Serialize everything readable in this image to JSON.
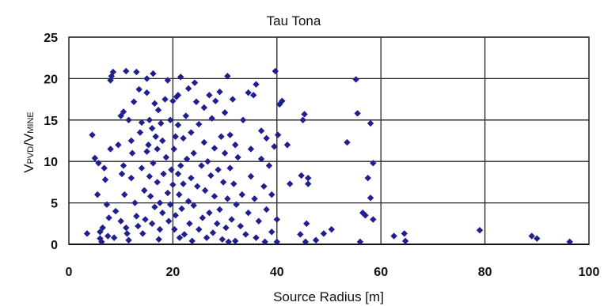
{
  "chart_data": {
    "type": "scatter",
    "title": "Tau Tona",
    "xlabel": "Source Radius [m]",
    "ylabel": {
      "parts": [
        "V",
        "PVD",
        "/V",
        "MINE"
      ]
    },
    "xlim": [
      0,
      100
    ],
    "ylim": [
      0,
      25
    ],
    "xticks": [
      "0",
      "20",
      "40",
      "60",
      "80",
      "100"
    ],
    "yticks": [
      "0",
      "5",
      "10",
      "15",
      "20",
      "25"
    ],
    "grid": true,
    "marker_color": "#1f1f8f",
    "points": [
      [
        3.5,
        1.3
      ],
      [
        4.5,
        13.2
      ],
      [
        5,
        10.4
      ],
      [
        5.5,
        6
      ],
      [
        5.7,
        9.8
      ],
      [
        6,
        1.5
      ],
      [
        6,
        0.7
      ],
      [
        6.3,
        0.3
      ],
      [
        6.5,
        2
      ],
      [
        6.8,
        9.2
      ],
      [
        7,
        7.8
      ],
      [
        7.3,
        4.8
      ],
      [
        7.5,
        1.0
      ],
      [
        7.7,
        3.2
      ],
      [
        8,
        11.5
      ],
      [
        8,
        19.8
      ],
      [
        8.2,
        20.3
      ],
      [
        8.5,
        20.8
      ],
      [
        8.7,
        0.8
      ],
      [
        9,
        4
      ],
      [
        9.5,
        12
      ],
      [
        10,
        15.5
      ],
      [
        10,
        2.8
      ],
      [
        10.2,
        8.5
      ],
      [
        10.5,
        16
      ],
      [
        10.5,
        9.5
      ],
      [
        10.7,
        6
      ],
      [
        11,
        20.9
      ],
      [
        11,
        2
      ],
      [
        11.2,
        1.3
      ],
      [
        11.5,
        15
      ],
      [
        11.5,
        0.5
      ],
      [
        12,
        12.5
      ],
      [
        12,
        8
      ],
      [
        12.2,
        11
      ],
      [
        12.5,
        17.2
      ],
      [
        12.7,
        5
      ],
      [
        13,
        20.8
      ],
      [
        13,
        3.4
      ],
      [
        13.3,
        2.2
      ],
      [
        13.5,
        18.7
      ],
      [
        13.7,
        13.5
      ],
      [
        14,
        9.2
      ],
      [
        14,
        14.7
      ],
      [
        14.2,
        1.3
      ],
      [
        14.5,
        6.5
      ],
      [
        14.7,
        3
      ],
      [
        15,
        20
      ],
      [
        15,
        11.2
      ],
      [
        15,
        18.3
      ],
      [
        15.3,
        12
      ],
      [
        15.5,
        8.2
      ],
      [
        15.5,
        15
      ],
      [
        15.7,
        5.8
      ],
      [
        16,
        14
      ],
      [
        16,
        2.5
      ],
      [
        16.2,
        20.6
      ],
      [
        16.2,
        9.8
      ],
      [
        16.5,
        17
      ],
      [
        16.5,
        4.5
      ],
      [
        16.7,
        13
      ],
      [
        17,
        11.5
      ],
      [
        17,
        7.5
      ],
      [
        17.2,
        16.2
      ],
      [
        17.3,
        0.6
      ],
      [
        17.5,
        1.8
      ],
      [
        17.5,
        5
      ],
      [
        17.7,
        14.6
      ],
      [
        18,
        12.5
      ],
      [
        18,
        3.8
      ],
      [
        18.2,
        8.5
      ],
      [
        18.5,
        17.5
      ],
      [
        18.7,
        10.5
      ],
      [
        19,
        6.2
      ],
      [
        19,
        19.8
      ],
      [
        19.2,
        2.8
      ],
      [
        19.5,
        4.8
      ],
      [
        19.5,
        15
      ],
      [
        19.7,
        9
      ],
      [
        20,
        7.2
      ],
      [
        20,
        17.3
      ],
      [
        20.2,
        11.5
      ],
      [
        20.3,
        1.8
      ],
      [
        20.5,
        3.5
      ],
      [
        20.5,
        13
      ],
      [
        20.7,
        17.8
      ],
      [
        21,
        18
      ],
      [
        21,
        8.5
      ],
      [
        21,
        14.4
      ],
      [
        21.2,
        6
      ],
      [
        21.3,
        0.8
      ],
      [
        21.5,
        9.5
      ],
      [
        21.5,
        20.2
      ],
      [
        21.7,
        4.3
      ],
      [
        22,
        12.8
      ],
      [
        22,
        7.3
      ],
      [
        22.2,
        1.2
      ],
      [
        22.5,
        15.5
      ],
      [
        22.7,
        10.3
      ],
      [
        23,
        5.2
      ],
      [
        23,
        18.8
      ],
      [
        23.2,
        2.5
      ],
      [
        23.5,
        8
      ],
      [
        23.5,
        13.5
      ],
      [
        23.7,
        0.4
      ],
      [
        24,
        11
      ],
      [
        24,
        4.7
      ],
      [
        24.2,
        19.5
      ],
      [
        24.5,
        17.2
      ],
      [
        24.7,
        7
      ],
      [
        25,
        1.8
      ],
      [
        25,
        14.5
      ],
      [
        25.5,
        9.5
      ],
      [
        25.7,
        3.2
      ],
      [
        26,
        12.3
      ],
      [
        26,
        16.5
      ],
      [
        26.2,
        6.5
      ],
      [
        26.5,
        0.8
      ],
      [
        26.7,
        10
      ],
      [
        27,
        18
      ],
      [
        27,
        3.8
      ],
      [
        27.3,
        8.3
      ],
      [
        27.5,
        15.2
      ],
      [
        27.7,
        1.4
      ],
      [
        28,
        5.8
      ],
      [
        28,
        11.6
      ],
      [
        28.2,
        17.3
      ],
      [
        28.5,
        2.5
      ],
      [
        28.7,
        9
      ],
      [
        29,
        18.4
      ],
      [
        29,
        4.2
      ],
      [
        29.3,
        13
      ],
      [
        29.5,
        0.6
      ],
      [
        29.7,
        7.5
      ],
      [
        30,
        15.9
      ],
      [
        30,
        11
      ],
      [
        30.2,
        2
      ],
      [
        30.5,
        5.5
      ],
      [
        30.5,
        20.3
      ],
      [
        30.7,
        0.3
      ],
      [
        31,
        13.2
      ],
      [
        31,
        9.2
      ],
      [
        31.3,
        3
      ],
      [
        31.5,
        17.5
      ],
      [
        31.7,
        7.3
      ],
      [
        32,
        0.4
      ],
      [
        32,
        12
      ],
      [
        32.2,
        4.8
      ],
      [
        32.5,
        10.5
      ],
      [
        33,
        2.2
      ],
      [
        33.3,
        6
      ],
      [
        33.5,
        15
      ],
      [
        34,
        1.2
      ],
      [
        34.5,
        18.3
      ],
      [
        34.5,
        3.8
      ],
      [
        35,
        8.2
      ],
      [
        35,
        11.5
      ],
      [
        35.5,
        18
      ],
      [
        35.7,
        5.5
      ],
      [
        36,
        0.8
      ],
      [
        36,
        19.3
      ],
      [
        36.5,
        2.8
      ],
      [
        37,
        10.3
      ],
      [
        37,
        13.7
      ],
      [
        37.5,
        7
      ],
      [
        37.7,
        0.3
      ],
      [
        38,
        4.2
      ],
      [
        38,
        12.8
      ],
      [
        38.5,
        9.5
      ],
      [
        39,
        1.5
      ],
      [
        39,
        6
      ],
      [
        39.5,
        11.8
      ],
      [
        39.7,
        20.9
      ],
      [
        40,
        0.3
      ],
      [
        40,
        3
      ],
      [
        40.2,
        13.2
      ],
      [
        40.5,
        16.9
      ],
      [
        41,
        17.3
      ],
      [
        42,
        12
      ],
      [
        42.5,
        7.3
      ],
      [
        44.5,
        1.2
      ],
      [
        44.7,
        8.3
      ],
      [
        45,
        15
      ],
      [
        45.3,
        15.7
      ],
      [
        45.5,
        0.3
      ],
      [
        45.7,
        2.5
      ],
      [
        46,
        7.3
      ],
      [
        46,
        8
      ],
      [
        47.5,
        0.5
      ],
      [
        49,
        1.3
      ],
      [
        50.5,
        1.8
      ],
      [
        53.5,
        12.3
      ],
      [
        55.2,
        19.9
      ],
      [
        55.5,
        15.8
      ],
      [
        56,
        0.3
      ],
      [
        56.5,
        3.8
      ],
      [
        57,
        3.5
      ],
      [
        57.5,
        8
      ],
      [
        58,
        14.6
      ],
      [
        58,
        5.6
      ],
      [
        58.5,
        9.8
      ],
      [
        58.5,
        3
      ],
      [
        62.5,
        1
      ],
      [
        64.5,
        1.3
      ],
      [
        64.7,
        0.4
      ],
      [
        79,
        1.7
      ],
      [
        89,
        1
      ],
      [
        90,
        0.7
      ],
      [
        96.3,
        0.3
      ]
    ]
  }
}
